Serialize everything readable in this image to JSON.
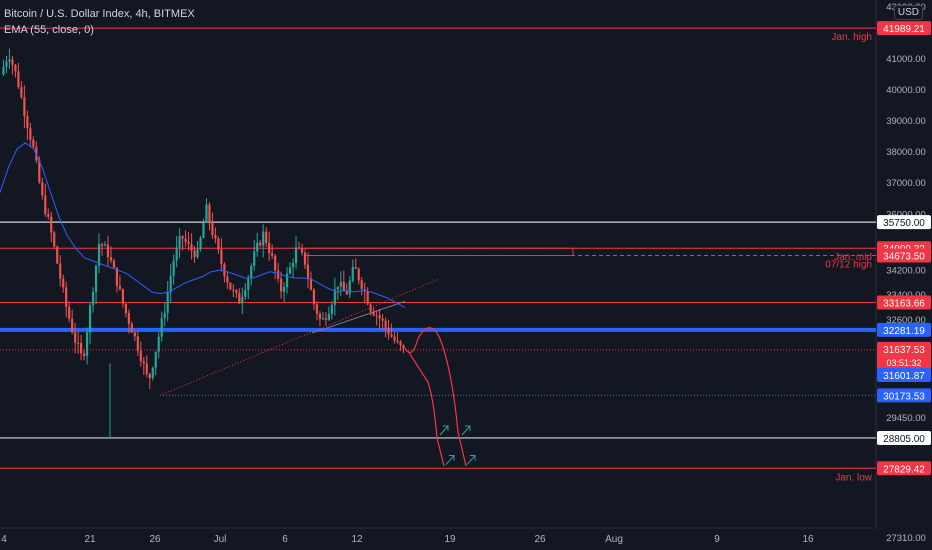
{
  "header": {
    "title": "Bitcoin / U.S. Dollar Index, 4h, BITMEX",
    "indicator": "EMA (55, close, 0)",
    "currency": "USD"
  },
  "colors": {
    "background": "#131722",
    "up_candle": "#26a69a",
    "down_candle": "#ef5350",
    "ema_line": "#2962ff",
    "red_level": "#f23645",
    "blue_level": "#2962ff",
    "white_level": "#d1d4dc",
    "dark_level": "#6a6d78",
    "projection": "#f23645",
    "arrow_green": "#26a69a"
  },
  "chart_data": {
    "type": "candlestick",
    "title": "Bitcoin / U.S. Dollar Index, 4h, BITMEX",
    "ylim": [
      27310,
      43000
    ],
    "x_ticks": [
      "4",
      "21",
      "26",
      "Jul",
      "6",
      "12",
      "19",
      "26",
      "Aug",
      "9",
      "16"
    ],
    "y_ticks": [
      "43000.00",
      "41000.00",
      "40000.00",
      "39000.00",
      "38000.00",
      "37000.00",
      "36000.00",
      "34200.00",
      "33400.00",
      "32600.00",
      "29450.00",
      "27860.00",
      "27310.00"
    ],
    "price_path": [
      40500,
      41200,
      40400,
      39200,
      38100,
      36600,
      35600,
      34300,
      33000,
      32000,
      31300,
      33200,
      35100,
      34800,
      34000,
      33000,
      32300,
      31500,
      30600,
      31800,
      33000,
      34500,
      35300,
      34900,
      34700,
      36200,
      35200,
      34300,
      33600,
      33200,
      33900,
      34800,
      35400,
      34600,
      33500,
      34100,
      34900,
      34500,
      33200,
      32500,
      33000,
      33800,
      33400,
      34300,
      33700,
      33000,
      32700,
      32300,
      31900,
      31600
    ],
    "ema_path": [
      36700,
      37500,
      38100,
      38300,
      38100,
      37500,
      36700,
      35900,
      35300,
      34900,
      34600,
      34500,
      34400,
      34300,
      34200,
      34100,
      33900,
      33700,
      33500,
      33450,
      33500,
      33650,
      33800,
      33900,
      34000,
      34150,
      34200,
      34150,
      34050,
      33950,
      33950,
      34050,
      34150,
      34100,
      34000,
      33950,
      33950,
      33900,
      33750,
      33600,
      33500,
      33550,
      33500,
      33550,
      33500,
      33400,
      33300,
      33150,
      33000
    ],
    "horizontal_levels": [
      {
        "label": "Jan. high",
        "value": "41989.21",
        "price": 41989.21,
        "style": "red"
      },
      {
        "label": "",
        "value": "35750.00",
        "price": 35750,
        "style": "white"
      },
      {
        "label": "Jan. mid",
        "value": "34909.32",
        "price": 34909.32,
        "style": "red"
      },
      {
        "label": "07/12 high",
        "value": "34673.50",
        "price": 34673.5,
        "style": "red-dashed"
      },
      {
        "label": "",
        "value": "33163.66",
        "price": 33163.66,
        "style": "red"
      },
      {
        "label": "",
        "value": "32281.19",
        "price": 32281.19,
        "style": "blue"
      },
      {
        "label": "",
        "value": "30173.53",
        "price": 30173.53,
        "style": "dotted"
      },
      {
        "label": "",
        "value": "28805.00",
        "price": 28805,
        "style": "white"
      },
      {
        "label": "Jan. low",
        "value": "27829.42",
        "price": 27829.42,
        "style": "red"
      }
    ],
    "current_price": {
      "value": "31637.53",
      "countdown": "03:51:32",
      "price": 31637.53
    },
    "secondary_price": {
      "value": "31601.87",
      "price": 31601.87
    }
  }
}
